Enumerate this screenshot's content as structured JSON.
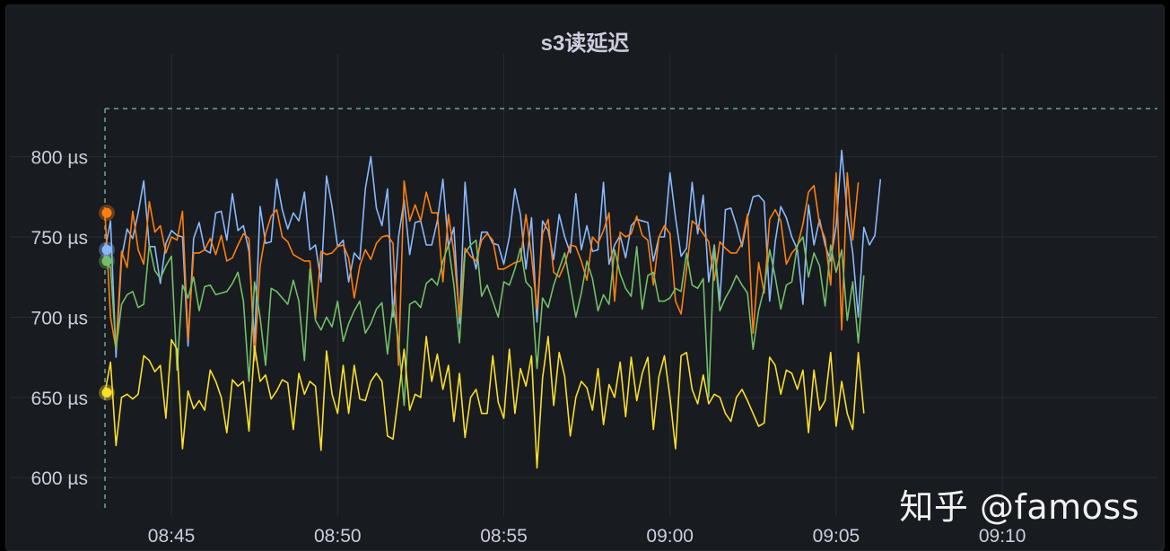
{
  "panel": {
    "title": "s3读延迟"
  },
  "watermark": "知乎 @famoss",
  "chart_data": {
    "type": "line",
    "title": "s3读延迟",
    "xlabel": "",
    "ylabel": "",
    "y_unit": "µs",
    "ylim": [
      580,
      830
    ],
    "xlim": [
      "08:43:00",
      "09:14:40"
    ],
    "x_ticks": [
      "08:45",
      "08:50",
      "08:55",
      "09:00",
      "09:05",
      "09:10"
    ],
    "y_ticks": [
      {
        "value": 600,
        "label": "600 µs"
      },
      {
        "value": 650,
        "label": "650 µs"
      },
      {
        "value": 700,
        "label": "700 µs"
      },
      {
        "value": 750,
        "label": "750 µs"
      },
      {
        "value": 800,
        "label": "800 µs"
      }
    ],
    "grid": true,
    "legend": "none",
    "sample_interval_seconds": 10,
    "series": [
      {
        "color": "#8ab8ff",
        "values": [
          742,
          760,
          675,
          737,
          755,
          749,
          765,
          785,
          744,
          744,
          721,
          746,
          754,
          751,
          750,
          682,
          749,
          759,
          742,
          740,
          765,
          766,
          748,
          777,
          754,
          757,
          741,
          684,
          769,
          746,
          747,
          786,
          767,
          755,
          765,
          760,
          778,
          742,
          745,
          722,
          788,
          769,
          744,
          748,
          722,
          740,
          736,
          780,
          800,
          768,
          757,
          780,
          700,
          750,
          773,
          739,
          759,
          760,
          745,
          745,
          760,
          786,
          744,
          756,
          696,
          784,
          744,
          730,
          753,
          753,
          746,
          745,
          733,
          750,
          780,
          764,
          730,
          762,
          697,
          760,
          754,
          736,
          764,
          750,
          740,
          777,
          742,
          757,
          741,
          742,
          784,
          733,
          745,
          751,
          737,
          757,
          761,
          760,
          759,
          735,
          750,
          750,
          790,
          762,
          738,
          743,
          784,
          752,
          776,
          722,
          745,
          710,
          767,
          768,
          757,
          744,
          762,
          775,
          776,
          772,
          710,
          747,
          769,
          762,
          750,
          742,
          708,
          770,
          745,
          761,
          745,
          735,
          757,
          804,
          764,
          740,
          700,
          756,
          745,
          751,
          786
        ]
      },
      {
        "color": "#ff7f0e",
        "values": [
          765,
          700,
          680,
          741,
          731,
          766,
          742,
          733,
          772,
          753,
          757,
          740,
          750,
          748,
          766,
          686,
          740,
          740,
          742,
          749,
          739,
          751,
          735,
          737,
          745,
          752,
          749,
          673,
          732,
          752,
          763,
          767,
          750,
          747,
          739,
          737,
          735,
          735,
          699,
          741,
          739,
          740,
          744,
          745,
          737,
          712,
          732,
          742,
          736,
          746,
          750,
          751,
          746,
          670,
          785,
          760,
          770,
          760,
          778,
          765,
          765,
          722,
          764,
          740,
          700,
          743,
          738,
          735,
          748,
          752,
          748,
          730,
          730,
          732,
          734,
          735,
          764,
          738,
          705,
          752,
          761,
          728,
          725,
          733,
          745,
          744,
          735,
          723,
          750,
          746,
          754,
          765,
          710,
          753,
          750,
          752,
          763,
          751,
          748,
          720,
          750,
          757,
          752,
          710,
          702,
          730,
          760,
          757,
          752,
          747,
          723,
          747,
          743,
          740,
          740,
          746,
          764,
          690,
          734,
          715,
          761,
          767,
          760,
          733,
          740,
          744,
          758,
          778,
          782,
          758,
          749,
          720,
          790,
          692,
          790,
          748,
          784
        ]
      },
      {
        "color": "#73bf69",
        "values": [
          735,
          731,
          680,
          708,
          714,
          716,
          706,
          708,
          745,
          729,
          724,
          732,
          738,
          667,
          720,
          712,
          725,
          704,
          719,
          720,
          714,
          715,
          716,
          721,
          728,
          710,
          660,
          722,
          700,
          670,
          718,
          716,
          712,
          708,
          723,
          710,
          673,
          730,
          698,
          692,
          700,
          694,
          710,
          685,
          696,
          704,
          710,
          690,
          696,
          705,
          709,
          677,
          708,
          685,
          645,
          708,
          710,
          706,
          721,
          724,
          720,
          735,
          745,
          720,
          684,
          740,
          745,
          748,
          713,
          720,
          710,
          700,
          722,
          720,
          730,
          743,
          722,
          718,
          668,
          712,
          706,
          720,
          730,
          740,
          720,
          700,
          715,
          735,
          724,
          704,
          714,
          708,
          742,
          727,
          718,
          713,
          744,
          705,
          726,
          728,
          710,
          710,
          712,
          718,
          716,
          740,
          720,
          718,
          724,
          650,
          744,
          704,
          712,
          718,
          726,
          720,
          715,
          680,
          704,
          718,
          742,
          725,
          705,
          720,
          722,
          745,
          750,
          725,
          740,
          732,
          707,
          745,
          728,
          742,
          698,
          722,
          684,
          726
        ]
      },
      {
        "color": "#fade2a",
        "values": [
          653,
          672,
          620,
          650,
          652,
          649,
          652,
          676,
          673,
          666,
          670,
          637,
          686,
          680,
          618,
          654,
          643,
          648,
          642,
          667,
          660,
          650,
          628,
          661,
          657,
          660,
          629,
          682,
          660,
          664,
          649,
          654,
          661,
          659,
          630,
          665,
          652,
          660,
          657,
          617,
          679,
          652,
          640,
          670,
          640,
          670,
          649,
          648,
          660,
          665,
          660,
          626,
          624,
          651,
          680,
          642,
          652,
          650,
          688,
          660,
          677,
          655,
          670,
          635,
          665,
          625,
          650,
          655,
          640,
          640,
          676,
          647,
          637,
          680,
          640,
          668,
          657,
          676,
          606,
          662,
          688,
          645,
          678,
          663,
          626,
          650,
          660,
          656,
          642,
          668,
          633,
          658,
          650,
          672,
          638,
          675,
          648,
          665,
          675,
          630,
          663,
          676,
          650,
          618,
          676,
          678,
          655,
          646,
          664,
          646,
          652,
          650,
          640,
          635,
          650,
          655,
          648,
          640,
          632,
          634,
          675,
          670,
          652,
          667,
          665,
          655,
          667,
          628,
          667,
          642,
          648,
          678,
          632,
          660,
          640,
          630,
          678,
          640
        ]
      }
    ]
  }
}
